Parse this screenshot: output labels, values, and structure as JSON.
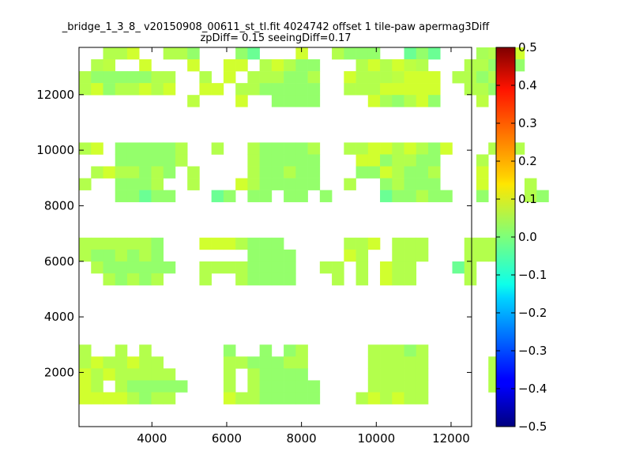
{
  "chart_data": {
    "type": "heatmap",
    "title": "_bridge_1_3_8_ v20150908_00611_st_tl.fit 4024742 offset 1 tile-paw apermag3Diff",
    "subtitle": "zpDiff= 0.15 seeingDiff=0.17",
    "xlim": [
      2050,
      12550
    ],
    "ylim": [
      50,
      13700
    ],
    "xticks": [
      4000,
      6000,
      8000,
      10000,
      12000
    ],
    "yticks": [
      2000,
      4000,
      6000,
      8000,
      10000,
      12000
    ],
    "grid": false,
    "colormap": "jet",
    "clim": [
      -0.5,
      0.5
    ],
    "colorbar_ticks": [
      "−0.5",
      "−0.4",
      "−0.3",
      "−0.2",
      "−0.1",
      "0.0",
      "0.1",
      "0.2",
      "0.3",
      "0.4",
      "0.5"
    ],
    "cell_width": 322,
    "cell_height": 428,
    "x0": 2050,
    "y0": 50,
    "row_values": [
      "  ccd  ccb   ba   d  cbbb  aba   fc d   ",
      " ce  d   d  dd cdcbb   cdcdec   ccbdb   ",
      "cbbbbbcc  c d cccbbc  dccceddd ccbcb    ",
      "cdbccdcd  dd ccbbbbb  cccddddd  ccbc    ",
      "         e   d  bbbb    dfbcdb   e d    ",
      "                                        ",
      "                                        ",
      "                                        ",
      "cd bbbbbc  c  cbbbbc  ccddcdcbd   c c   ",
      "   bbbbbc     cbbbbb   ddbccbb   c      ",
      " cdccbcb c    cbbcbb   bbdcbbc   d d    ",
      "c  bbbc  c   dcbbbbb  c  bcbbb   d   c  ",
      "   bbabb   ab bb bb b    abbcbb  b c cb ",
      "                                        ",
      "                                        ",
      "                                        ",
      "ccccccb   dddcbbb     ccd ccc   ccc     ",
      "cbbcbcb       bbbb    dc  ccc   ccc     ",
      " cbbbbbb  ccccbbbb  cc c dcc   ac       ",
      "  cbcbc   c  cbbbb   c c dcc    c       ",
      "                                        ",
      "                                        ",
      "                                        ",
      "                                        ",
      "                                        ",
      "c  c c      b  b bc     cccbc           ",
      "cdccdcc     ccbbbcc     ccccc     cc    ",
      "dcdccccc    c cbbbb     ccccc     cc    ",
      "dc cbbbbb   c cbbbbb    ccccc     cc    ",
      "ddddcbcc    dccbbbbb   cdcdcc           ",
      "                                        "
    ],
    "value_legend": {
      "a": -0.02,
      "b": 0.02,
      "c": 0.05,
      "d": 0.08,
      "e": 0.06,
      "f": 0.04
    }
  }
}
